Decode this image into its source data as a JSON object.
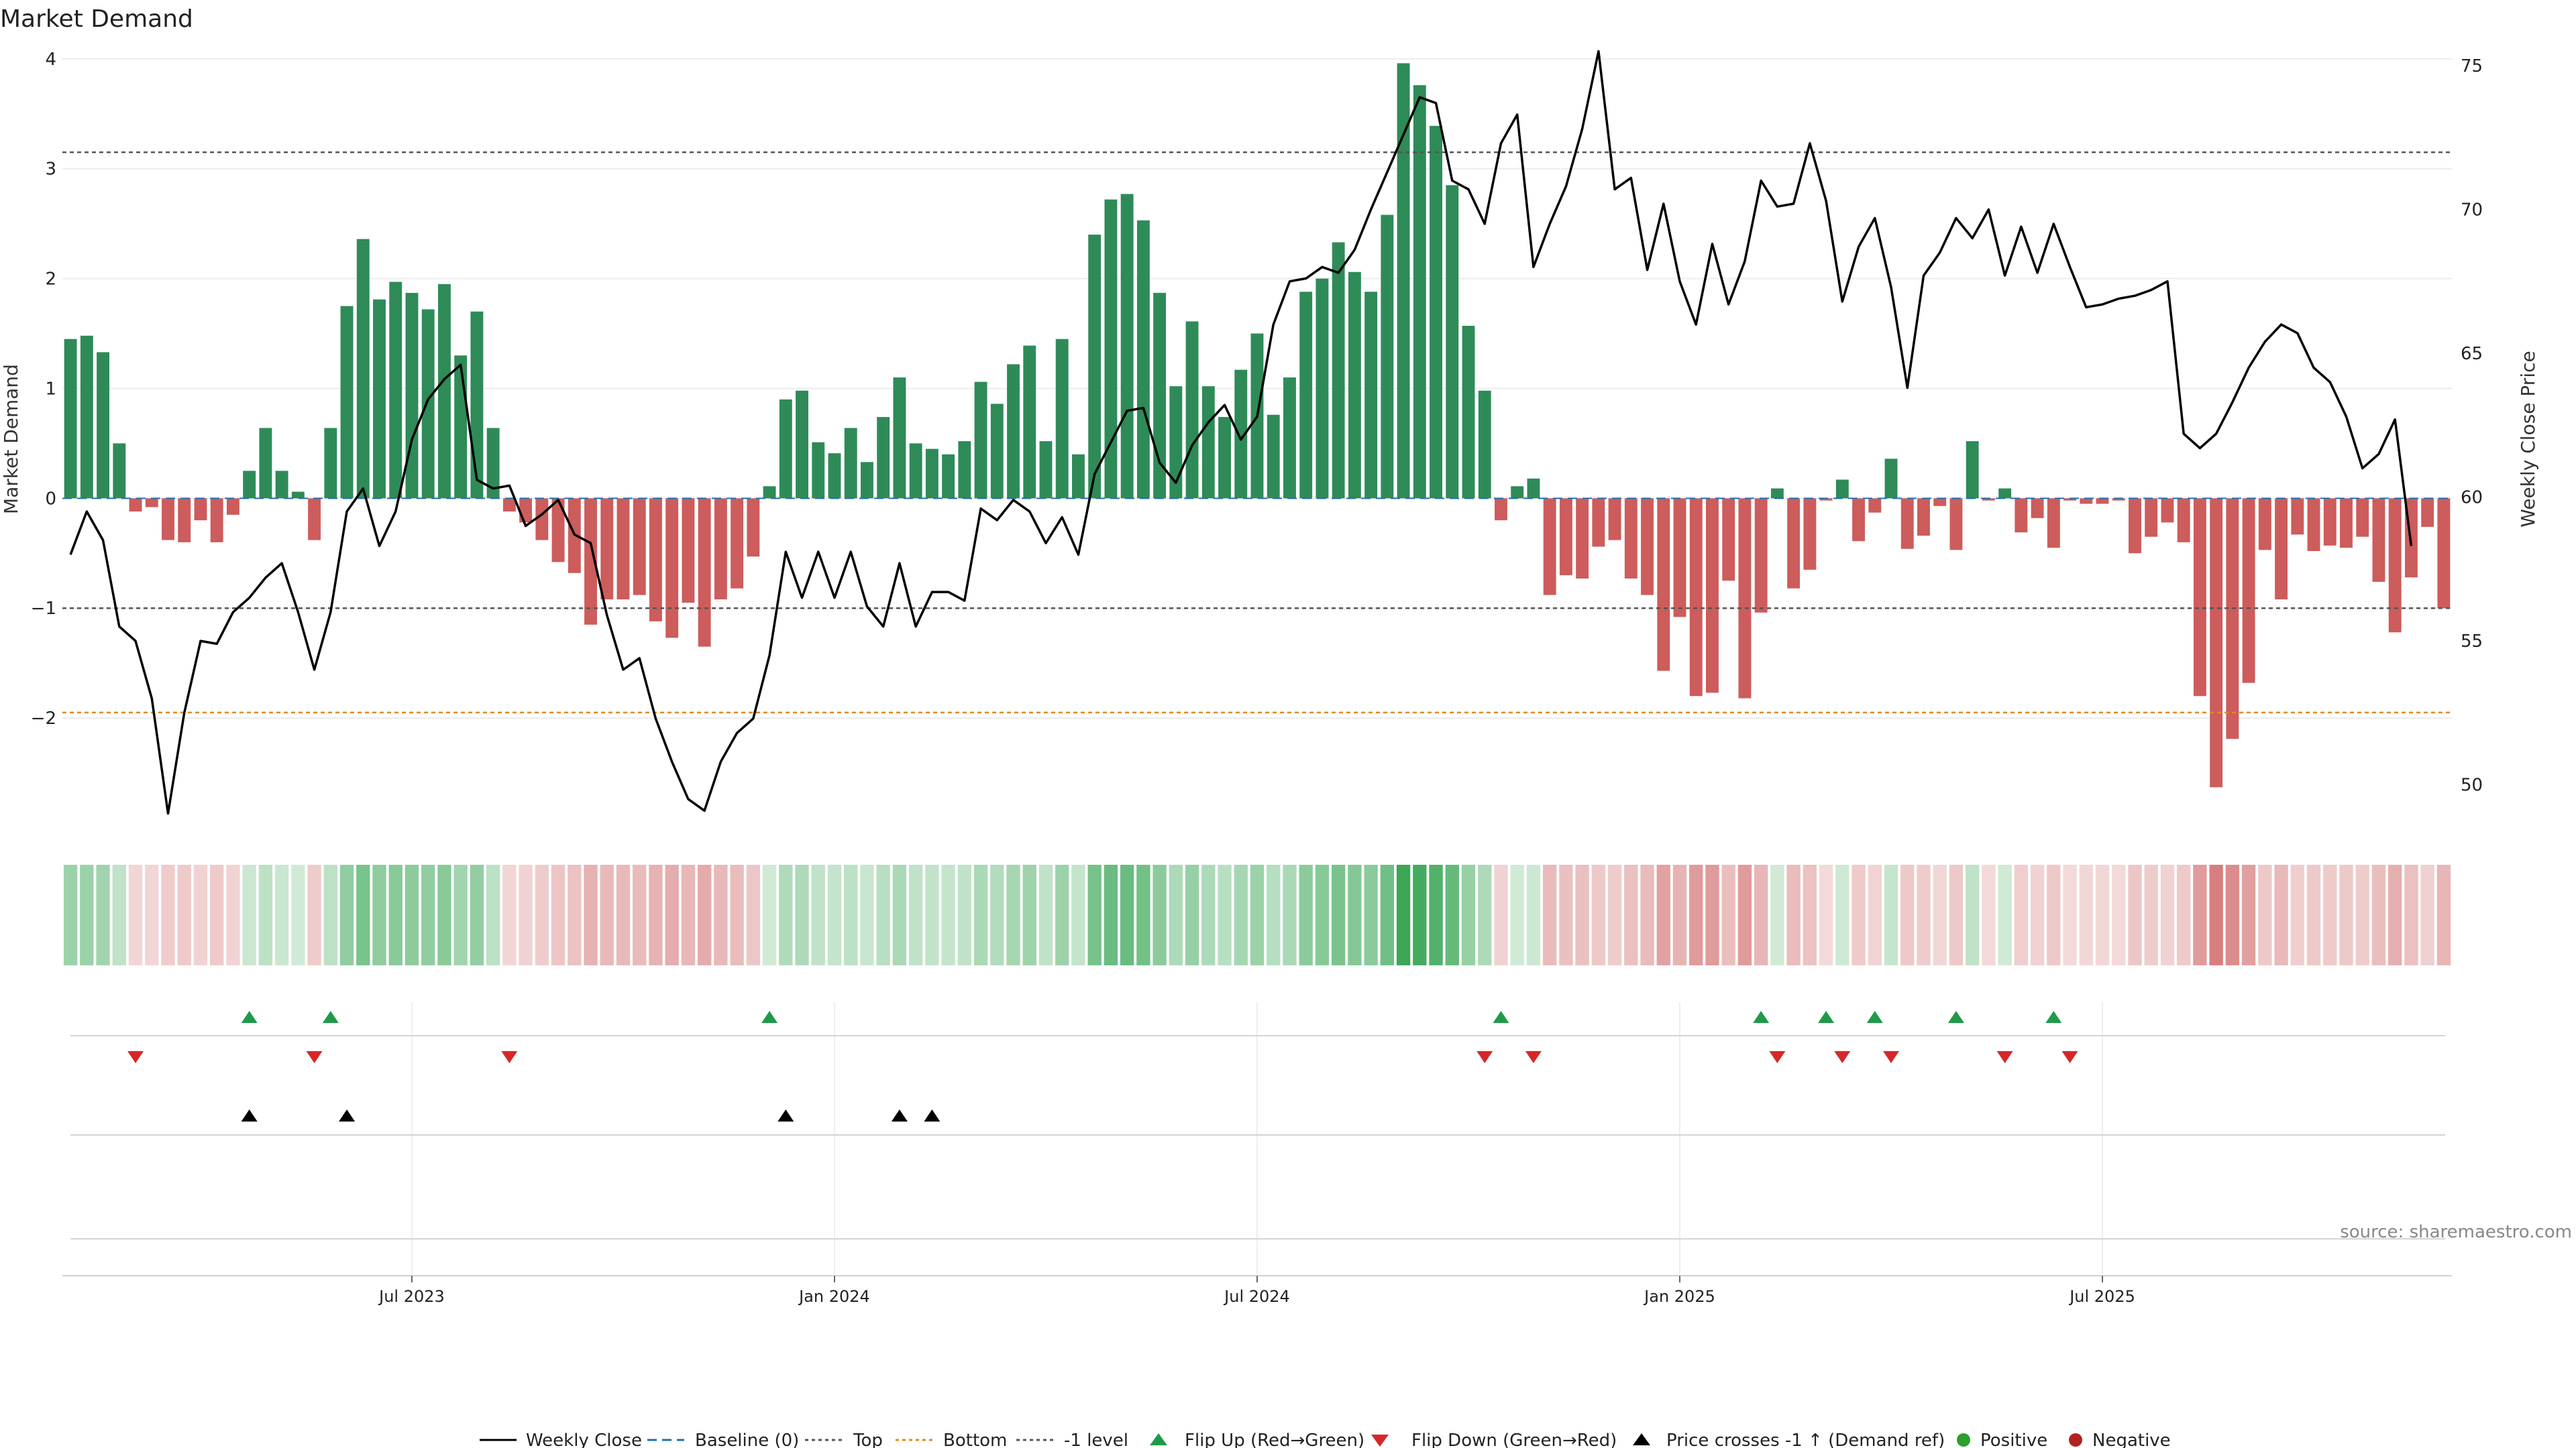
{
  "title": "Market Demand",
  "source": "source: sharemaestro.com",
  "y_left_label": "Market Demand",
  "y_right_label": "Weekly Close Price",
  "x_ticks": [
    "Jul 2023",
    "Jan 2024",
    "Jul 2024",
    "Jan 2025",
    "Jul 2025"
  ],
  "x_tick_index": [
    21.5,
    47.5,
    73.5,
    99.5,
    125.5
  ],
  "y_left_ticks": [
    4,
    3,
    2,
    1,
    0,
    -1,
    -2
  ],
  "y_left_tick_labels": [
    "4",
    "3",
    "2",
    "1",
    "0",
    "−1",
    "−2"
  ],
  "y_right_ticks": [
    75,
    70,
    65,
    60,
    55,
    50
  ],
  "legend": {
    "weekly_close": "Weekly Close",
    "baseline": "Baseline (0)",
    "top": "Top",
    "bottom": "Bottom",
    "minus1": "-1 level",
    "flip_up": "Flip Up (Red→Green)",
    "flip_down": "Flip Down (Green→Red)",
    "price_cross": "Price crosses -1 ↑ (Demand ref)",
    "positive": "Positive",
    "negative": "Negative"
  },
  "colors": {
    "positive": "#2e8b57",
    "negative": "#cd5c5c",
    "price": "#000000",
    "top": "#555555",
    "bottom": "#e08a1e",
    "baseline": "#1f6fb2",
    "flip_up": "#1f9a4a",
    "flip_down": "#d62728",
    "pos_dot": "#2ca02c",
    "neg_dot": "#b22222"
  },
  "chart_data": {
    "type": "bar",
    "title": "Market Demand",
    "ylabel": "Market Demand",
    "y2label": "Weekly Close Price",
    "ylim": [
      -3.0,
      4.2
    ],
    "y2lim": [
      48.5,
      76.0
    ],
    "levels": {
      "top": 3.15,
      "minus1": -1.0,
      "bottom": -1.95,
      "baseline": 0
    },
    "demand": [
      1.45,
      1.48,
      1.33,
      0.5,
      -0.12,
      -0.08,
      -0.38,
      -0.4,
      -0.2,
      -0.4,
      -0.15,
      0.25,
      0.64,
      0.25,
      0.06,
      -0.38,
      0.64,
      1.75,
      2.36,
      1.81,
      1.97,
      1.87,
      1.72,
      1.95,
      1.3,
      1.7,
      0.64,
      -0.12,
      -0.22,
      -0.38,
      -0.58,
      -0.68,
      -1.15,
      -0.92,
      -0.92,
      -0.88,
      -1.12,
      -1.27,
      -0.95,
      -1.35,
      -0.92,
      -0.82,
      -0.53,
      0.11,
      0.9,
      0.98,
      0.51,
      0.41,
      0.64,
      0.33,
      0.74,
      1.1,
      0.5,
      0.45,
      0.4,
      0.52,
      1.06,
      0.86,
      1.22,
      1.39,
      0.52,
      1.45,
      0.4,
      2.4,
      2.72,
      2.77,
      2.53,
      1.87,
      1.02,
      1.61,
      1.02,
      0.74,
      1.17,
      1.5,
      0.76,
      1.1,
      1.88,
      2.0,
      2.33,
      2.06,
      1.88,
      2.58,
      3.96,
      3.76,
      3.39,
      2.85,
      1.57,
      0.98,
      -0.2,
      0.11,
      0.18,
      -0.88,
      -0.7,
      -0.73,
      -0.44,
      -0.38,
      -0.73,
      -0.88,
      -1.57,
      -1.08,
      -1.8,
      -1.77,
      -0.75,
      -1.82,
      -1.04,
      0.09,
      -0.82,
      -0.65,
      -0.02,
      0.17,
      -0.39,
      -0.13,
      0.36,
      -0.46,
      -0.34,
      -0.07,
      -0.47,
      0.52,
      -0.02,
      0.09,
      -0.31,
      -0.18,
      -0.45,
      -0.02,
      -0.05,
      -0.05,
      -0.02,
      -0.5,
      -0.35,
      -0.22,
      -0.4,
      -1.8,
      -2.63,
      -2.19,
      -1.68,
      -0.47,
      -0.92,
      -0.33,
      -0.48,
      -0.43,
      -0.45,
      -0.35,
      -0.76,
      -1.22,
      -0.72,
      -0.26,
      -1.0
    ],
    "close": [
      58.0,
      59.5,
      58.5,
      55.5,
      55.0,
      53.0,
      49.0,
      52.5,
      55.0,
      54.9,
      56.0,
      56.5,
      57.2,
      57.7,
      56.0,
      54.0,
      56.0,
      59.5,
      60.3,
      58.3,
      59.5,
      62.0,
      63.4,
      64.1,
      64.6,
      60.6,
      60.3,
      60.4,
      59.0,
      59.4,
      59.9,
      58.7,
      58.4,
      55.9,
      54.0,
      54.4,
      52.3,
      50.8,
      49.5,
      49.1,
      50.8,
      51.8,
      52.3,
      54.5,
      58.1,
      56.5,
      58.1,
      56.5,
      58.1,
      56.2,
      55.5,
      57.7,
      55.5,
      56.7,
      56.7,
      56.4,
      59.6,
      59.2,
      59.9,
      59.5,
      58.4,
      59.3,
      58.0,
      60.8,
      61.9,
      63.0,
      63.1,
      61.2,
      60.5,
      61.8,
      62.6,
      63.2,
      62.0,
      62.8,
      66.0,
      67.5,
      67.6,
      68.0,
      67.8,
      68.6,
      70.0,
      71.3,
      72.6,
      73.9,
      73.7,
      71.0,
      70.7,
      69.5,
      72.3,
      73.3,
      68.0,
      69.5,
      70.8,
      72.8,
      75.5,
      70.7,
      71.1,
      67.9,
      70.2,
      67.5,
      66.0,
      68.8,
      66.7,
      68.2,
      71.0,
      70.1,
      70.2,
      72.3,
      70.3,
      66.8,
      68.7,
      69.7,
      67.3,
      63.8,
      67.7,
      68.5,
      69.7,
      69.0,
      70.0,
      67.7,
      69.4,
      67.8,
      69.5,
      68.0,
      66.6,
      66.7,
      66.9,
      67.0,
      67.2,
      67.5,
      62.2,
      61.7,
      62.2,
      63.3,
      64.5,
      65.4,
      66.0,
      65.7,
      64.5,
      64.0,
      62.8,
      61.0,
      61.5,
      62.7,
      58.3
    ]
  },
  "markers": {
    "flip_up": [
      11,
      16,
      43,
      88,
      104,
      108,
      111,
      116,
      122
    ],
    "flip_down": [
      4,
      15,
      27,
      87,
      90,
      105,
      109,
      112,
      119,
      123
    ],
    "price_cross": [
      11,
      17,
      44,
      51,
      53
    ]
  }
}
